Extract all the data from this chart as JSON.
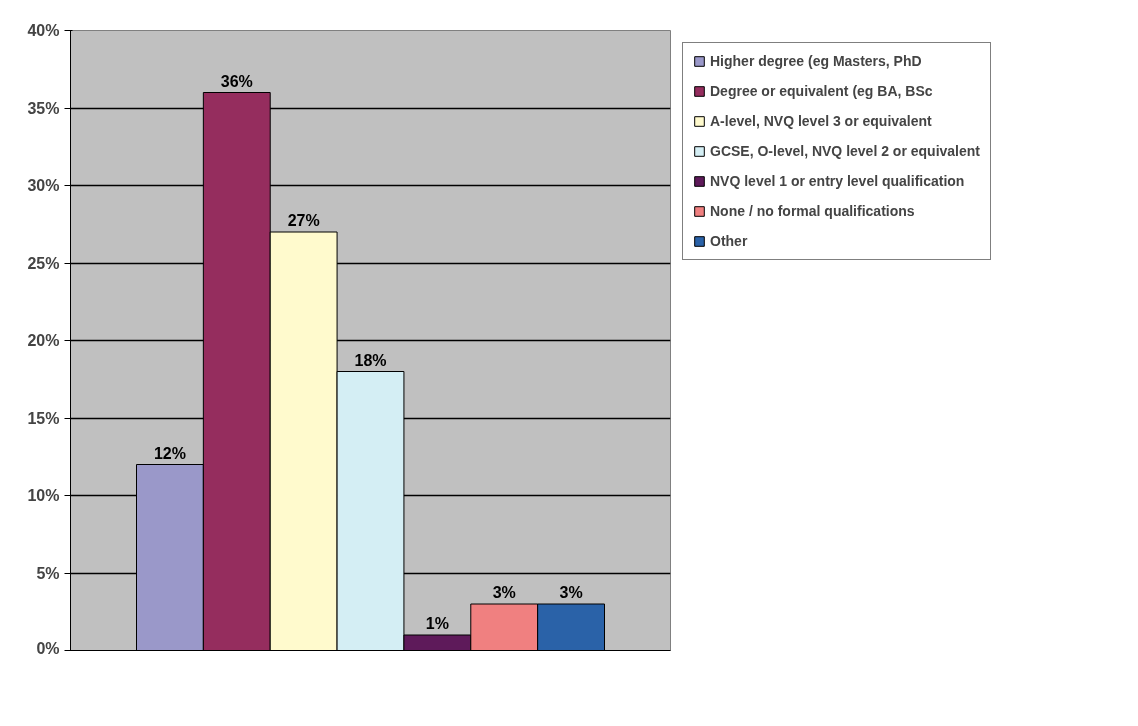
{
  "chart_data": {
    "type": "bar",
    "categories": [
      null
    ],
    "series": [
      {
        "name": "Higher degree (eg Masters, PhD",
        "color": "#9a98c9",
        "values": [
          12
        ]
      },
      {
        "name": "Degree or equivalent (eg BA, BSc",
        "color": "#952d5e",
        "values": [
          36
        ]
      },
      {
        "name": "A-level, NVQ level 3 or equivalent",
        "color": "#fffacd",
        "values": [
          27
        ]
      },
      {
        "name": "GCSE, O-level, NVQ level 2 or equivalent",
        "color": "#d4eef4",
        "values": [
          18
        ]
      },
      {
        "name": "NVQ level 1 or entry level qualification",
        "color": "#5e1a5a",
        "values": [
          1
        ]
      },
      {
        "name": "None / no formal qualifications",
        "color": "#f08080",
        "values": [
          3
        ]
      },
      {
        "name": "Other",
        "color": "#2a62a8",
        "values": [
          3
        ]
      }
    ],
    "ylim": [
      0,
      40
    ],
    "yticks": [
      {
        "value": 0,
        "label": "0%"
      },
      {
        "value": 5,
        "label": "5%"
      },
      {
        "value": 10,
        "label": "10%"
      },
      {
        "value": 15,
        "label": "15%"
      },
      {
        "value": 20,
        "label": "20%"
      },
      {
        "value": 25,
        "label": "25%"
      },
      {
        "value": 30,
        "label": "30%"
      },
      {
        "value": 35,
        "label": "35%"
      },
      {
        "value": 40,
        "label": "40%"
      }
    ],
    "value_labels": [
      "12%",
      "36%",
      "27%",
      "18%",
      "1%",
      "3%",
      "3%"
    ],
    "grid": "y",
    "legend": "right",
    "tick_labels": "y"
  }
}
